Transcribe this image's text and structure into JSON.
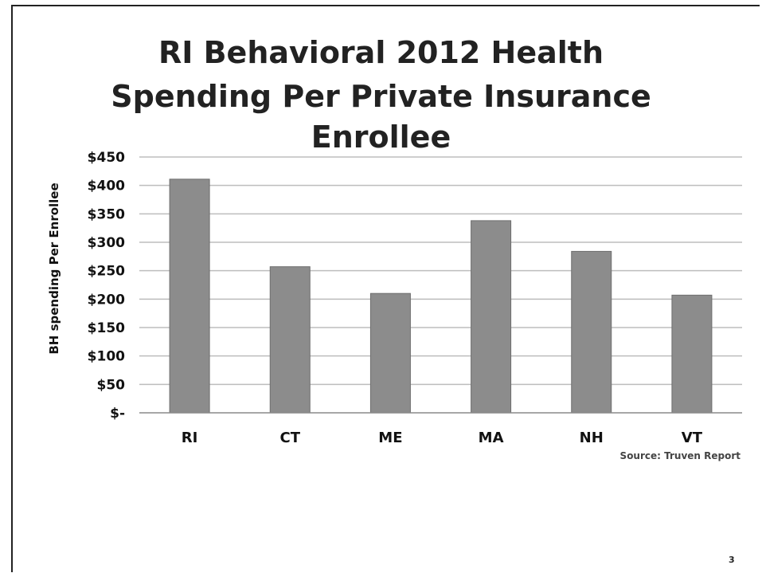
{
  "slide": {
    "title_lines": [
      "RI Behavioral 2012 Health",
      "Spending Per Private Insurance",
      "Enrollee"
    ],
    "source": "Source: Truven Report",
    "page_number": "3"
  },
  "chart_data": {
    "type": "bar",
    "title": "RI Behavioral 2012 Health Spending Per Private Insurance Enrollee",
    "ylabel": "BH spending Per Enrollee",
    "xlabel": "",
    "categories": [
      "RI",
      "CT",
      "ME",
      "MA",
      "NH",
      "VT"
    ],
    "values": [
      411,
      257,
      210,
      338,
      284,
      207
    ],
    "ylim": [
      0,
      450
    ],
    "yticks": [
      0,
      50,
      100,
      150,
      200,
      250,
      300,
      350,
      400,
      450
    ],
    "ytick_labels": [
      "$-",
      "$50",
      "$100",
      "$150",
      "$200",
      "$250",
      "$300",
      "$350",
      "$400",
      "$450"
    ],
    "grid": true,
    "legend": "none",
    "colors": {
      "bar": "#8c8c8c",
      "bar_edge": "#6e6e6e",
      "grid": "#bdbdbd"
    }
  }
}
